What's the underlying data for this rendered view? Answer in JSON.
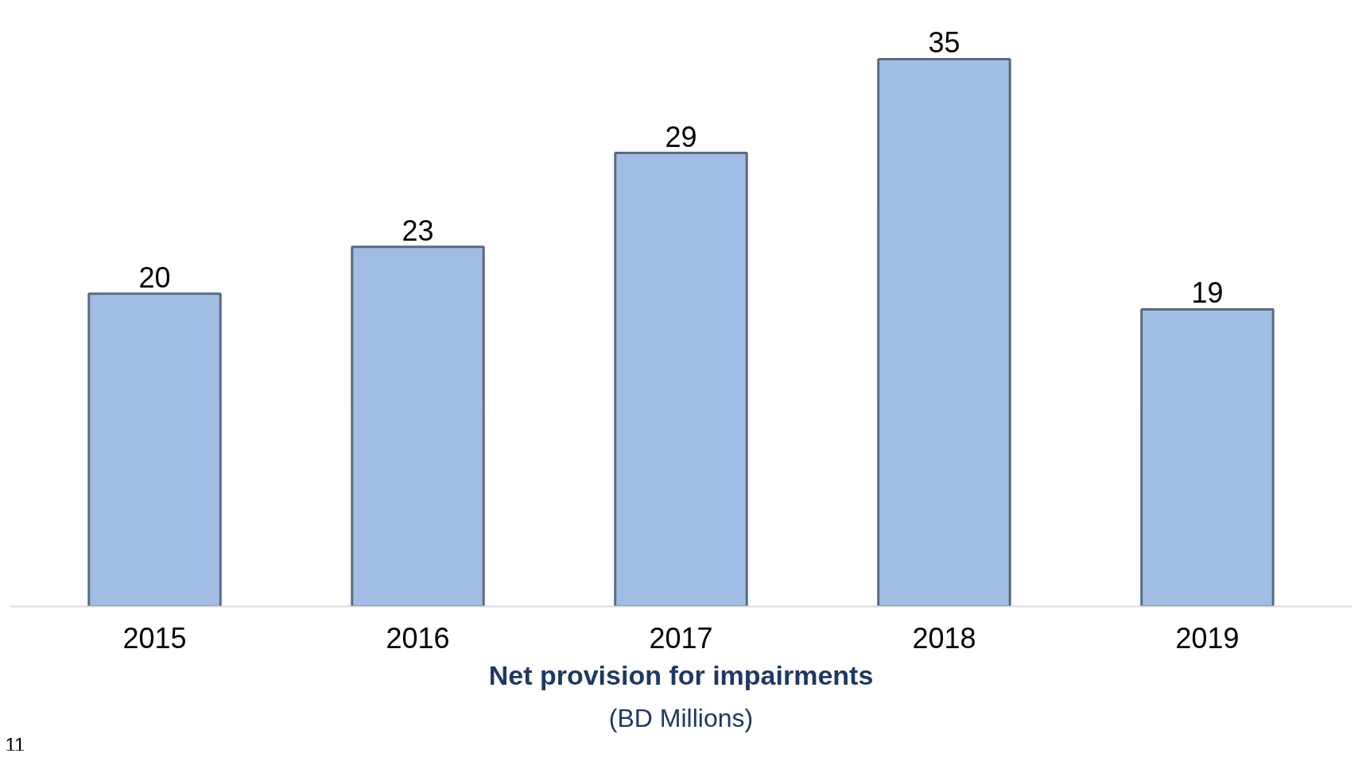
{
  "chart_data": {
    "type": "bar",
    "title": "Net provision for impairments",
    "subtitle": "(BD Millions)",
    "categories": [
      "2015",
      "2016",
      "2017",
      "2018",
      "2019"
    ],
    "values": [
      20,
      23,
      29,
      35,
      19
    ],
    "color": "#a1bde4",
    "data_labels": true,
    "grid": false,
    "annotations": [
      "11"
    ]
  }
}
